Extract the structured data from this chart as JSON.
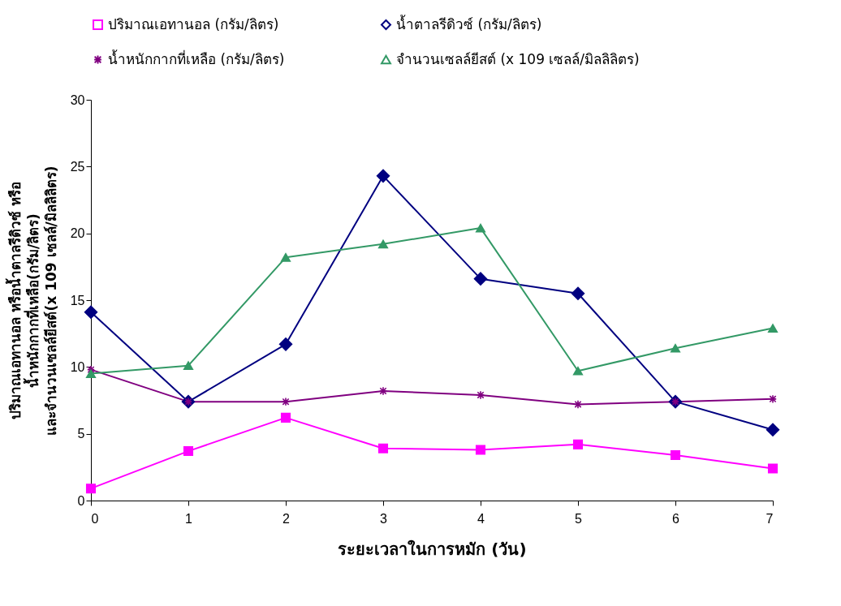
{
  "chart_data": {
    "type": "line",
    "xlabel": "ระยะเวลาในการหมัก (วัน)",
    "ylabel": "ปริมาณเอทานอล หรือน้ำตาลรีดิวซ์ หรือ\nน้ำหนักกากที่เหลือ(กรัม/ลิตร)\nและจำนวนเซลล์ยีสต์(x 109 เซลล์/มิลลิลิตร)",
    "x": [
      0,
      1,
      2,
      3,
      4,
      5,
      6,
      7
    ],
    "series": [
      {
        "name": "ปริมาณเอทานอล  (กรัม/ลิตร)",
        "color": "#ff00ff",
        "marker": "square",
        "values": [
          0.9,
          3.7,
          6.2,
          3.9,
          3.8,
          4.2,
          3.4,
          2.4
        ]
      },
      {
        "name": "น้ำตาลรีดิวซ์  (กรัม/ลิตร)",
        "color": "#000080",
        "marker": "diamond",
        "values": [
          14.1,
          7.4,
          11.7,
          24.3,
          16.6,
          15.5,
          7.4,
          5.3
        ]
      },
      {
        "name": "น้ำหนักกากที่เหลือ  (กรัม/ลิตร)",
        "color": "#800080",
        "marker": "cross",
        "values": [
          9.8,
          7.4,
          7.4,
          8.2,
          7.9,
          7.2,
          7.4,
          7.6
        ]
      },
      {
        "name": "จำนวนเซลล์ยีสต์ (x 109 เซลล์/มิลลิลิตร)",
        "color": "#339966",
        "marker": "triangle",
        "values": [
          9.5,
          10.1,
          18.2,
          19.2,
          20.4,
          9.7,
          11.4,
          12.9
        ]
      }
    ],
    "xlim": [
      0,
      7
    ],
    "xticks": [
      0,
      1,
      2,
      3,
      4,
      5,
      6,
      7
    ],
    "ylim": [
      0,
      30
    ],
    "yticks": [
      0,
      5,
      10,
      15,
      20,
      25,
      30
    ],
    "grid": false,
    "legend": "top"
  }
}
